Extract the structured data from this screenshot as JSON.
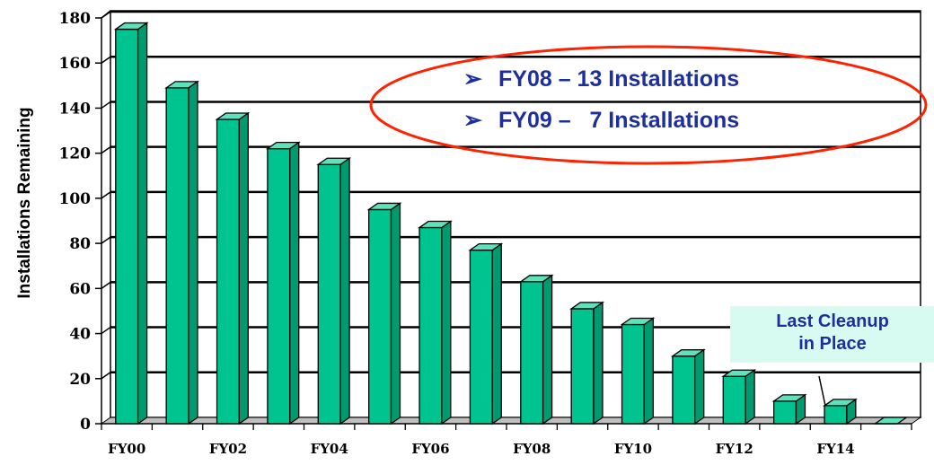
{
  "chart_data": {
    "type": "bar",
    "categories": [
      "FY00",
      "FY01",
      "FY02",
      "FY03",
      "FY04",
      "FY05",
      "FY06",
      "FY07",
      "FY08",
      "FY09",
      "FY10",
      "FY11",
      "FY12",
      "FY13",
      "FY14",
      "FY15"
    ],
    "tick_labels": [
      "FY00",
      "FY02",
      "FY04",
      "FY06",
      "FY08",
      "FY10",
      "FY12",
      "FY14"
    ],
    "values": [
      175,
      149,
      135,
      122,
      115,
      95,
      87,
      77,
      63,
      51,
      44,
      30,
      21,
      10,
      8,
      0
    ],
    "ylabel": "Installations Remaining",
    "ylim": [
      0,
      180
    ],
    "yticks": [
      0,
      20,
      40,
      60,
      80,
      100,
      120,
      140,
      160,
      180
    ],
    "grid": true,
    "bar_color": "#00c48f",
    "grid_color": "#000000"
  },
  "callout": {
    "lines": [
      "FY08 – 13 Installations",
      "FY09 –   7 Installations"
    ],
    "bullet": "➢",
    "ellipse_color": "#ff2200"
  },
  "note": {
    "lines": [
      "Last Cleanup",
      "in Place"
    ],
    "background": "#d8fbf1"
  }
}
